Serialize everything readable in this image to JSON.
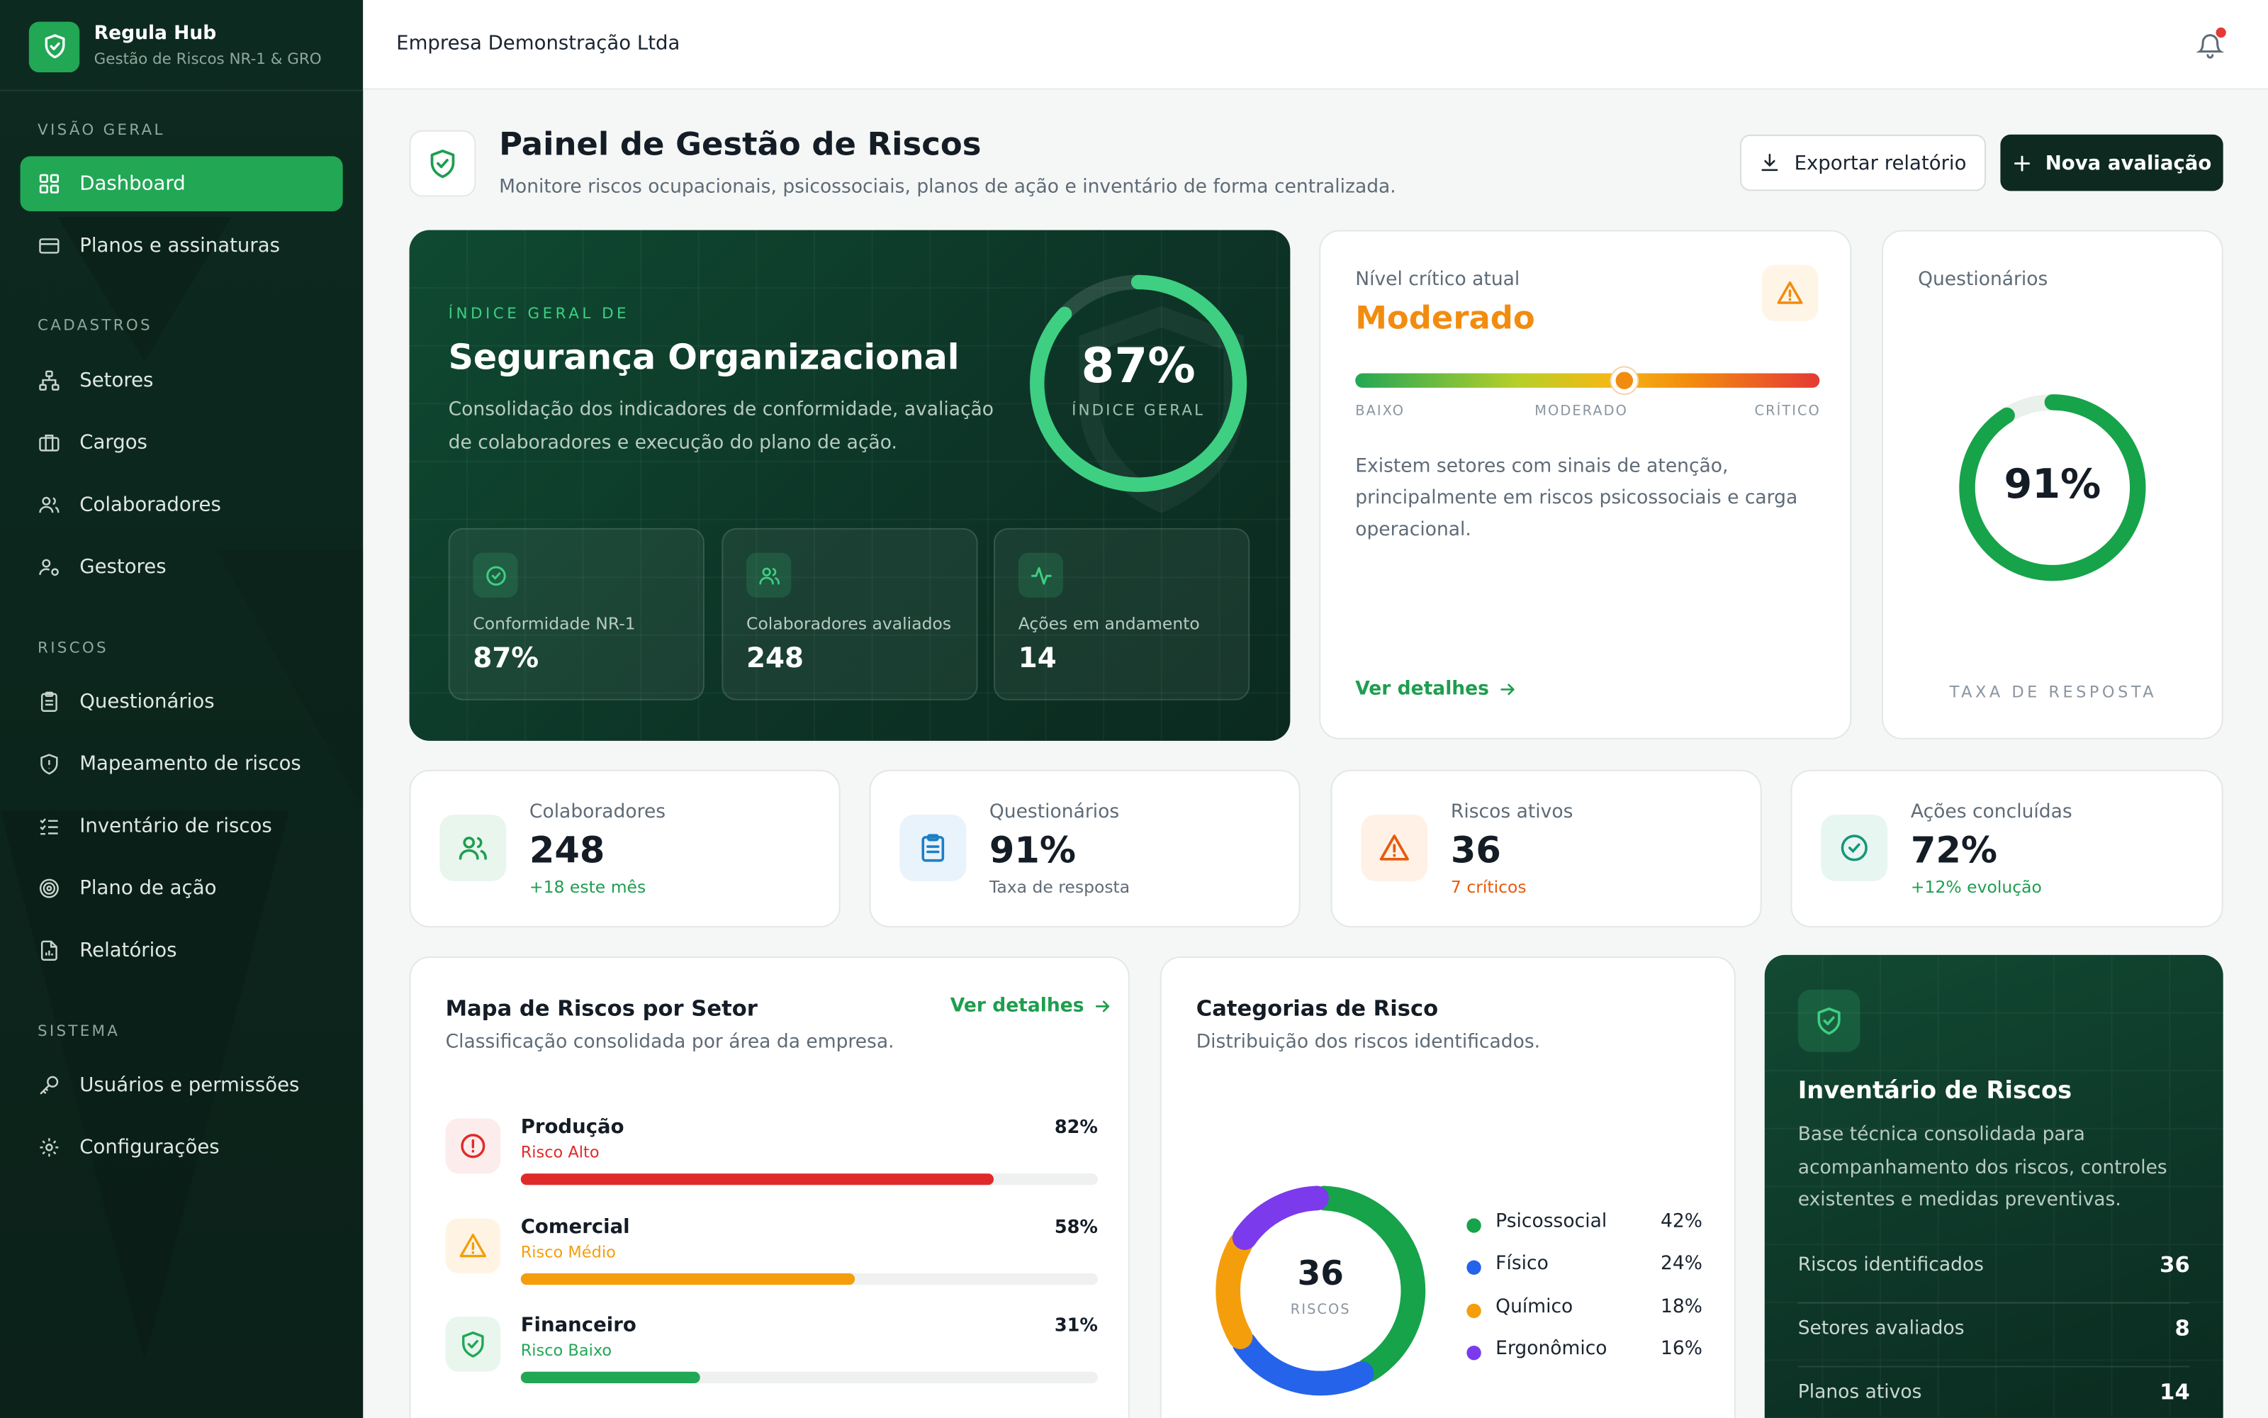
{
  "brand": {
    "name": "Regula Hub",
    "subtitle": "Gestão de Riscos NR-1 & GRO"
  },
  "sidebar": {
    "sections": [
      {
        "label": "VISÃO GERAL"
      },
      {
        "label": "CADASTROS"
      },
      {
        "label": "RISCOS"
      },
      {
        "label": "SISTEMA"
      }
    ],
    "items": [
      {
        "label": "Dashboard",
        "icon": "dashboard-icon",
        "active": true
      },
      {
        "label": "Planos e assinaturas",
        "icon": "credit-card-icon"
      },
      {
        "label": "Setores",
        "icon": "sitemap-icon"
      },
      {
        "label": "Cargos",
        "icon": "briefcase-icon"
      },
      {
        "label": "Colaboradores",
        "icon": "users-icon"
      },
      {
        "label": "Gestores",
        "icon": "user-cog-icon"
      },
      {
        "label": "Questionários",
        "icon": "clipboard-icon"
      },
      {
        "label": "Mapeamento de riscos",
        "icon": "shield-alert-icon"
      },
      {
        "label": "Inventário de riscos",
        "icon": "list-check-icon"
      },
      {
        "label": "Plano de ação",
        "icon": "target-icon"
      },
      {
        "label": "Relatórios",
        "icon": "report-icon"
      },
      {
        "label": "Usuários e permissões",
        "icon": "key-icon"
      },
      {
        "label": "Configurações",
        "icon": "gear-icon"
      }
    ]
  },
  "header": {
    "company": "Empresa Demonstração Ltda"
  },
  "page": {
    "title": "Painel de Gestão de Riscos",
    "subtitle": "Monitore riscos ocupacionais, psicossociais, planos de ação e inventário de forma centralizada.",
    "export_label": "Exportar relatório",
    "new_label": "Nova avaliação"
  },
  "hero": {
    "eyebrow": "ÍNDICE GERAL DE",
    "title": "Segurança Organizacional",
    "description": "Consolidação dos indicadores de conformidade, avaliação de colaboradores e execução do plano de ação.",
    "index_value": "87%",
    "index_fraction": 0.87,
    "index_label": "ÍNDICE GERAL",
    "metrics": [
      {
        "label": "Conformidade NR-1",
        "value": "87%"
      },
      {
        "label": "Colaboradores avaliados",
        "value": "248"
      },
      {
        "label": "Ações em andamento",
        "value": "14"
      }
    ]
  },
  "critical": {
    "label": "Nível crítico atual",
    "value": "Moderado",
    "scale": [
      "BAIXO",
      "MODERADO",
      "CRÍTICO"
    ],
    "level_fraction": 0.58,
    "text": "Existem setores com sinais de atenção, principalmente em riscos psicossociais e carga operacional.",
    "link": "Ver detalhes"
  },
  "questionnaires": {
    "label": "Questionários",
    "value": "91%",
    "fraction": 0.91,
    "footer": "TAXA DE RESPOSTA"
  },
  "stats": [
    {
      "label": "Colaboradores",
      "value": "248",
      "sub": "+18 este mês",
      "sub_color": "#1e9e4f"
    },
    {
      "label": "Questionários",
      "value": "91%",
      "sub": "Taxa de resposta",
      "sub_color": "#5f6b77"
    },
    {
      "label": "Riscos ativos",
      "value": "36",
      "sub": "7 críticos",
      "sub_color": "#e8590c"
    },
    {
      "label": "Ações concluídas",
      "value": "72%",
      "sub": "+12% evolução",
      "sub_color": "#1e9e4f"
    }
  ],
  "sectors": {
    "title": "Mapa de Riscos por Setor",
    "subtitle": "Classificação consolidada por área da empresa.",
    "link": "Ver detalhes",
    "rows": [
      {
        "name": "Produção",
        "risk": "Risco Alto",
        "pct": "82%",
        "value": 82,
        "color": "#e02a2a"
      },
      {
        "name": "Comercial",
        "risk": "Risco Médio",
        "pct": "58%",
        "value": 58,
        "color": "#f59e0b"
      },
      {
        "name": "Financeiro",
        "risk": "Risco Baixo",
        "pct": "31%",
        "value": 31,
        "color": "#22a755"
      }
    ]
  },
  "categories": {
    "title": "Categorias de Risco",
    "subtitle": "Distribuição dos riscos identificados.",
    "total": "36",
    "total_label": "RISCOS",
    "items": [
      {
        "name": "Psicossocial",
        "pct": "42%",
        "value": 42,
        "color": "#16a34a"
      },
      {
        "name": "Físico",
        "pct": "24%",
        "value": 24,
        "color": "#2563eb"
      },
      {
        "name": "Químico",
        "pct": "18%",
        "value": 18,
        "color": "#f59e0b"
      },
      {
        "name": "Ergonômico",
        "pct": "16%",
        "value": 16,
        "color": "#7c3aed"
      }
    ]
  },
  "inventory": {
    "title": "Inventário de Riscos",
    "description": "Base técnica consolidada para acompanhamento dos riscos, controles existentes e medidas preventivas.",
    "rows": [
      {
        "label": "Riscos identificados",
        "value": "36"
      },
      {
        "label": "Setores avaliados",
        "value": "8"
      },
      {
        "label": "Planos ativos",
        "value": "14"
      }
    ]
  },
  "colors": {
    "accent": "#22a755",
    "dark": "#0e2a20",
    "warning": "#f28c0f",
    "danger": "#e53935"
  }
}
